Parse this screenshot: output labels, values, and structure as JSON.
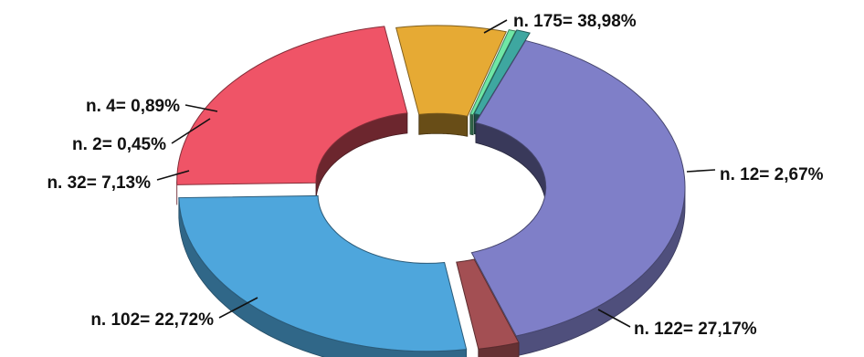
{
  "chart_data": {
    "type": "pie",
    "style": "3d-exploded-donut",
    "title": "",
    "slices": [
      {
        "count": 175,
        "percent": 38.98,
        "label": "n. 175= 38,98%",
        "color": "#7f7fc8"
      },
      {
        "count": 12,
        "percent": 2.67,
        "label": "n. 12= 2,67%",
        "color": "#a34f53"
      },
      {
        "count": 122,
        "percent": 27.17,
        "label": "n. 122= 27,17%",
        "color": "#4ea6dc"
      },
      {
        "count": 102,
        "percent": 22.72,
        "label": "n. 102= 22,72%",
        "color": "#ef5467"
      },
      {
        "count": 32,
        "percent": 7.13,
        "label": "n. 32= 7,13%",
        "color": "#e6aa34"
      },
      {
        "count": 2,
        "percent": 0.45,
        "label": "n. 2= 0,45%",
        "color": "#6fe7a6"
      },
      {
        "count": 4,
        "percent": 0.89,
        "label": "n. 4= 0,89%",
        "color": "#3ea7a0"
      }
    ]
  }
}
